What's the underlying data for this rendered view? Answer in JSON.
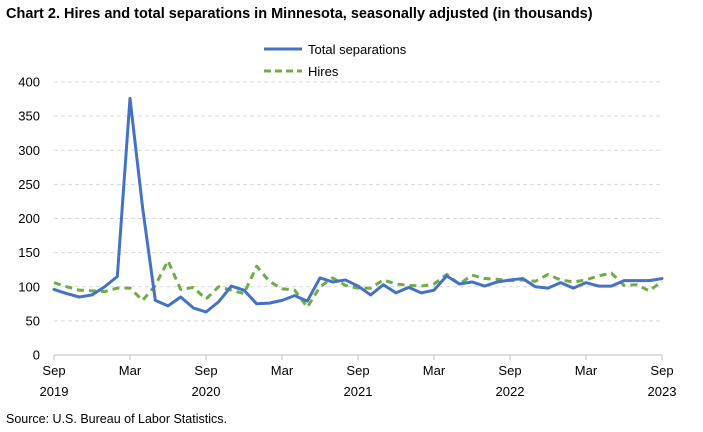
{
  "title": "Chart 2. Hires and total separations in Minnesota, seasonally adjusted (in thousands)",
  "source": "Source: U.S. Bureau of Labor Statistics.",
  "legend": [
    {
      "label": "Total separations",
      "color": "#4472c4",
      "dash": "solid"
    },
    {
      "label": "Hires",
      "color": "#70ad47",
      "dash": "dashed"
    }
  ],
  "chart_data": {
    "type": "line",
    "title": "Chart 2. Hires and total separations in Minnesota, seasonally adjusted (in thousands)",
    "xlabel": "",
    "ylabel": "",
    "ylim": [
      0,
      400
    ],
    "yticks": [
      0,
      50,
      100,
      150,
      200,
      250,
      300,
      350,
      400
    ],
    "grid": "horizontal dashed",
    "legend_position": "top-center",
    "x_tick_labels": [
      {
        "month": "Sep",
        "year": "2019"
      },
      {
        "month": "Mar",
        "year": ""
      },
      {
        "month": "Sep",
        "year": "2020"
      },
      {
        "month": "Mar",
        "year": ""
      },
      {
        "month": "Sep",
        "year": "2021"
      },
      {
        "month": "Mar",
        "year": ""
      },
      {
        "month": "Sep",
        "year": "2022"
      },
      {
        "month": "Mar",
        "year": ""
      },
      {
        "month": "Sep",
        "year": "2023"
      }
    ],
    "x": [
      "Sep 2019",
      "Oct 2019",
      "Nov 2019",
      "Dec 2019",
      "Jan 2020",
      "Feb 2020",
      "Mar 2020",
      "Apr 2020",
      "May 2020",
      "Jun 2020",
      "Jul 2020",
      "Aug 2020",
      "Sep 2020",
      "Oct 2020",
      "Nov 2020",
      "Dec 2020",
      "Jan 2021",
      "Feb 2021",
      "Mar 2021",
      "Apr 2021",
      "May 2021",
      "Jun 2021",
      "Jul 2021",
      "Aug 2021",
      "Sep 2021",
      "Oct 2021",
      "Nov 2021",
      "Dec 2021",
      "Jan 2022",
      "Feb 2022",
      "Mar 2022",
      "Apr 2022",
      "May 2022",
      "Jun 2022",
      "Jul 2022",
      "Aug 2022",
      "Sep 2022",
      "Oct 2022",
      "Nov 2022",
      "Dec 2022",
      "Jan 2023",
      "Feb 2023",
      "Mar 2023",
      "Apr 2023",
      "May 2023",
      "Jun 2023",
      "Jul 2023",
      "Aug 2023",
      "Sep 2023"
    ],
    "series": [
      {
        "name": "Total separations",
        "color": "#4472c4",
        "values": [
          96,
          90,
          85,
          88,
          100,
          115,
          376,
          215,
          80,
          72,
          85,
          69,
          63,
          78,
          101,
          95,
          75,
          76,
          80,
          87,
          79,
          113,
          107,
          110,
          101,
          88,
          103,
          91,
          99,
          91,
          95,
          116,
          104,
          107,
          101,
          107,
          110,
          112,
          100,
          98,
          106,
          98,
          106,
          101,
          101,
          109,
          109,
          109,
          112
        ]
      },
      {
        "name": "Hires",
        "color": "#70ad47",
        "values": [
          106,
          100,
          95,
          94,
          93,
          98,
          98,
          80,
          102,
          138,
          96,
          99,
          82,
          100,
          95,
          90,
          130,
          108,
          97,
          95,
          70,
          100,
          113,
          102,
          98,
          98,
          110,
          104,
          102,
          101,
          104,
          118,
          104,
          117,
          112,
          111,
          109,
          110,
          108,
          118,
          110,
          107,
          110,
          116,
          120,
          102,
          103,
          94,
          108
        ]
      }
    ]
  }
}
